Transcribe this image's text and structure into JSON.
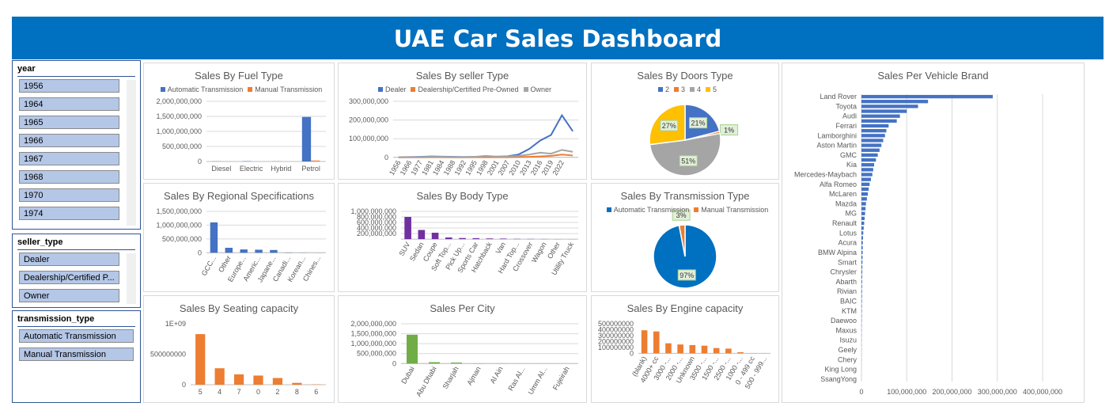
{
  "title": "UAE Car Sales Dashboard",
  "slicers": [
    {
      "field": "year",
      "items": [
        "1956",
        "1964",
        "1965",
        "1966",
        "1967",
        "1968",
        "1970",
        "1974"
      ]
    },
    {
      "field": "seller_type",
      "items": [
        "Dealer",
        "Dealership/Certified P...",
        "Owner"
      ]
    },
    {
      "field": "transmission_type",
      "items": [
        "Automatic Transmission",
        "Manual Transmission"
      ]
    }
  ],
  "chart_data": [
    {
      "type": "bar",
      "title": "Sales By Fuel Type",
      "categories": [
        "Diesel",
        "Electric",
        "Hybrid",
        "Petrol"
      ],
      "series": [
        {
          "name": "Automatic Transmission",
          "color": "#4472c4",
          "values": [
            5000000,
            10000000,
            5000000,
            1480000000
          ]
        },
        {
          "name": "Manual Transmission",
          "color": "#ed7d31",
          "values": [
            1000000,
            0,
            0,
            30000000
          ]
        }
      ],
      "ylim": [
        0,
        2000000000
      ],
      "yticks": [
        0,
        {
          "value": 500000000,
          "label": "500,000,000"
        },
        {
          "value": 1000000000,
          "label": "1,000,000,000"
        },
        {
          "value": 1500000000,
          "label": "1,500,000,000"
        },
        {
          "value": 2000000000,
          "label": "2,000,000,000"
        }
      ],
      "grid": true
    },
    {
      "type": "line",
      "title": "Sales By seller Type",
      "categories": [
        "1956",
        "1966",
        "1977",
        "1981",
        "1984",
        "1988",
        "1992",
        "1995",
        "1998",
        "2001",
        "2007",
        "2010",
        "2013",
        "2016",
        "2019",
        "2022",
        null
      ],
      "series": [
        {
          "name": "Dealer",
          "color": "#4472c4",
          "values": [
            1000000,
            2000000,
            3000000,
            5000000,
            4000000,
            3000000,
            2000000,
            3000000,
            5000000,
            4000000,
            6000000,
            15000000,
            45000000,
            90000000,
            120000000,
            225000000,
            140000000
          ]
        },
        {
          "name": "Dealership/Certified Pre-Owned",
          "color": "#ed7d31",
          "values": [
            0,
            0,
            0,
            1000000,
            1000000,
            0,
            0,
            1000000,
            1000000,
            1000000,
            1000000,
            2000000,
            3000000,
            5000000,
            8000000,
            15000000,
            10000000
          ]
        },
        {
          "name": "Owner",
          "color": "#a5a5a5",
          "values": [
            500000,
            1000000,
            2000000,
            3000000,
            3000000,
            2000000,
            2000000,
            3000000,
            8000000,
            4000000,
            5000000,
            8000000,
            15000000,
            25000000,
            20000000,
            40000000,
            30000000
          ]
        }
      ],
      "ylim": [
        0,
        300000000
      ],
      "yticks": [
        0,
        {
          "value": 100000000,
          "label": "100,000,000"
        },
        {
          "value": 200000000,
          "label": "200,000,000"
        },
        {
          "value": 300000000,
          "label": "300,000,000"
        }
      ],
      "grid": true
    },
    {
      "type": "pie",
      "title": "Sales By Doors Type",
      "categories": [
        "2",
        "3",
        "4",
        "5"
      ],
      "values": [
        21,
        1,
        51,
        27
      ],
      "value_labels": [
        "21%",
        "1%",
        "51%",
        "27%"
      ],
      "colors": [
        "#4472c4",
        "#ed7d31",
        "#a5a5a5",
        "#ffc000"
      ]
    },
    {
      "type": "bar",
      "title": "Sales By Regional Specifications",
      "categories": [
        "GCC...",
        "Other",
        "Europe...",
        "Americ...",
        "Japane...",
        "Canadi...",
        "Korean...",
        "Chines..."
      ],
      "values": [
        1100000000,
        180000000,
        120000000,
        110000000,
        100000000,
        10000000,
        5000000,
        2000000
      ],
      "color": "#4472c4",
      "ylim": [
        0,
        1500000000
      ],
      "yticks": [
        0,
        {
          "value": 500000000,
          "label": "500,000,000"
        },
        {
          "value": 1000000000,
          "label": "1,000,000,000"
        },
        {
          "value": 1500000000,
          "label": "1,500,000,000"
        }
      ],
      "grid": true
    },
    {
      "type": "bar",
      "title": "Sales By Body Type",
      "categories": [
        "SUV",
        "Sedan",
        "Coupe",
        "Soft Top...",
        "Pick Up...",
        "Sports Car",
        "Hatchback",
        "Van",
        "Hard Top...",
        "Crossover",
        "Wagon",
        "Other",
        "Utility Truck"
      ],
      "values": [
        800000000,
        330000000,
        230000000,
        60000000,
        40000000,
        35000000,
        25000000,
        20000000,
        10000000,
        8000000,
        5000000,
        3000000,
        2000000
      ],
      "color": "#7030a0",
      "ylim": [
        0,
        1000000000
      ],
      "yticks": [
        {
          "value": 200000000,
          "label": "200,000,000"
        },
        {
          "value": 400000000,
          "label": "400,000,000"
        },
        {
          "value": 600000000,
          "label": "600,000,000"
        },
        {
          "value": 800000000,
          "label": "800,000,000"
        },
        {
          "value": 1000000000,
          "label": "1,000,000,000"
        }
      ],
      "grid": true
    },
    {
      "type": "pie",
      "title": "Sales By Transmission Type",
      "categories": [
        "Automatic Transmission",
        "Manual Transmission"
      ],
      "values": [
        97,
        3
      ],
      "value_labels": [
        "97%",
        "3%"
      ],
      "colors": [
        "#0070c0",
        "#ed7d31"
      ]
    },
    {
      "type": "bar",
      "title": "Sales By Seating capacity",
      "categories": [
        "5",
        "4",
        "7",
        "0",
        "2",
        "8",
        "6"
      ],
      "values": [
        830000000,
        270000000,
        170000000,
        150000000,
        110000000,
        30000000,
        5000000
      ],
      "color": "#ed7d31",
      "ylim": [
        0,
        1000000000
      ],
      "yticks": [
        0,
        500000000,
        {
          "value": 1000000000,
          "label": "1E+09"
        }
      ],
      "grid": false
    },
    {
      "type": "bar",
      "title": "Sales Per City",
      "categories": [
        "Dubai",
        "Abu Dhabi",
        "Sharjah",
        "Ajman",
        "Al Ain",
        "Ras Al...",
        "Umm Al...",
        "Fujeirah"
      ],
      "values": [
        1450000000,
        70000000,
        50000000,
        10000000,
        5000000,
        3000000,
        2000000,
        1000000
      ],
      "color": "#70ad47",
      "ylim": [
        0,
        2000000000
      ],
      "yticks": [
        0,
        {
          "value": 500000000,
          "label": "500,000,000"
        },
        {
          "value": 1000000000,
          "label": "1,000,000,000"
        },
        {
          "value": 1500000000,
          "label": "1,500,000,000"
        },
        {
          "value": 2000000000,
          "label": "2,000,000,000"
        }
      ],
      "grid": true
    },
    {
      "type": "bar",
      "title": "Sales By Engine capacity",
      "categories": [
        "(blank)",
        "4000+ cc",
        "3000 -...",
        "2000 -...",
        "Unknown",
        "3500 -...",
        "1500 -...",
        "2500 -...",
        "1000 -...",
        "0 - 499 cc",
        "500 - 999..."
      ],
      "values": [
        390000000,
        370000000,
        170000000,
        150000000,
        140000000,
        130000000,
        90000000,
        80000000,
        20000000,
        2000000,
        1000000
      ],
      "color": "#ed7d31",
      "ylim": [
        0,
        500000000
      ],
      "yticks": [
        0,
        100000000,
        200000000,
        300000000,
        400000000,
        500000000
      ],
      "grid": false
    },
    {
      "type": "bar",
      "horizontal": true,
      "title": "Sales Per Vehicle Brand",
      "categories": [
        "Land Rover",
        null,
        "Toyota",
        null,
        "Audi",
        null,
        "Ferrari",
        null,
        "Lamborghini",
        null,
        "Aston Martin",
        null,
        "GMC",
        null,
        "Kia",
        null,
        "Mercedes-Maybach",
        null,
        "Alfa Romeo",
        null,
        "McLaren",
        null,
        "Mazda",
        null,
        "MG",
        null,
        "Renault",
        null,
        "Lotus",
        null,
        "Acura",
        null,
        "BMW Alpina",
        null,
        "Smart",
        null,
        "Chrysler",
        null,
        "Abarth",
        null,
        "Rivian",
        null,
        "BAIC",
        null,
        "KTM",
        null,
        "Daewoo",
        null,
        "Maxus",
        null,
        "Isuzu",
        null,
        "Geely",
        null,
        "Chery",
        null,
        "King Long",
        null,
        "SsangYong"
      ],
      "values": [
        290000000,
        147000000,
        125000000,
        100000000,
        85000000,
        78000000,
        60000000,
        55000000,
        52000000,
        48000000,
        44000000,
        40000000,
        36000000,
        32000000,
        28000000,
        26000000,
        24000000,
        21000000,
        18000000,
        16000000,
        14000000,
        12000000,
        10000000,
        9000000,
        8000000,
        7000000,
        6000000,
        5000000,
        4000000,
        3500000,
        3000000,
        2800000,
        2600000,
        2400000,
        2200000,
        2000000,
        1800000,
        1600000,
        1500000,
        1400000,
        1300000,
        1200000,
        1100000,
        1000000,
        900000,
        800000,
        700000,
        600000,
        500000,
        450000,
        400000,
        350000,
        300000,
        250000,
        200000,
        150000,
        120000,
        100000,
        80000
      ],
      "color": "#4472c4",
      "xlim": [
        0,
        400000000
      ],
      "xticks": [
        0,
        {
          "value": 100000000,
          "label": "100,000,000"
        },
        {
          "value": 200000000,
          "label": "200,000,000"
        },
        {
          "value": 300000000,
          "label": "300,000,000"
        },
        {
          "value": 400000000,
          "label": "400,000,000"
        }
      ],
      "grid": true
    }
  ]
}
